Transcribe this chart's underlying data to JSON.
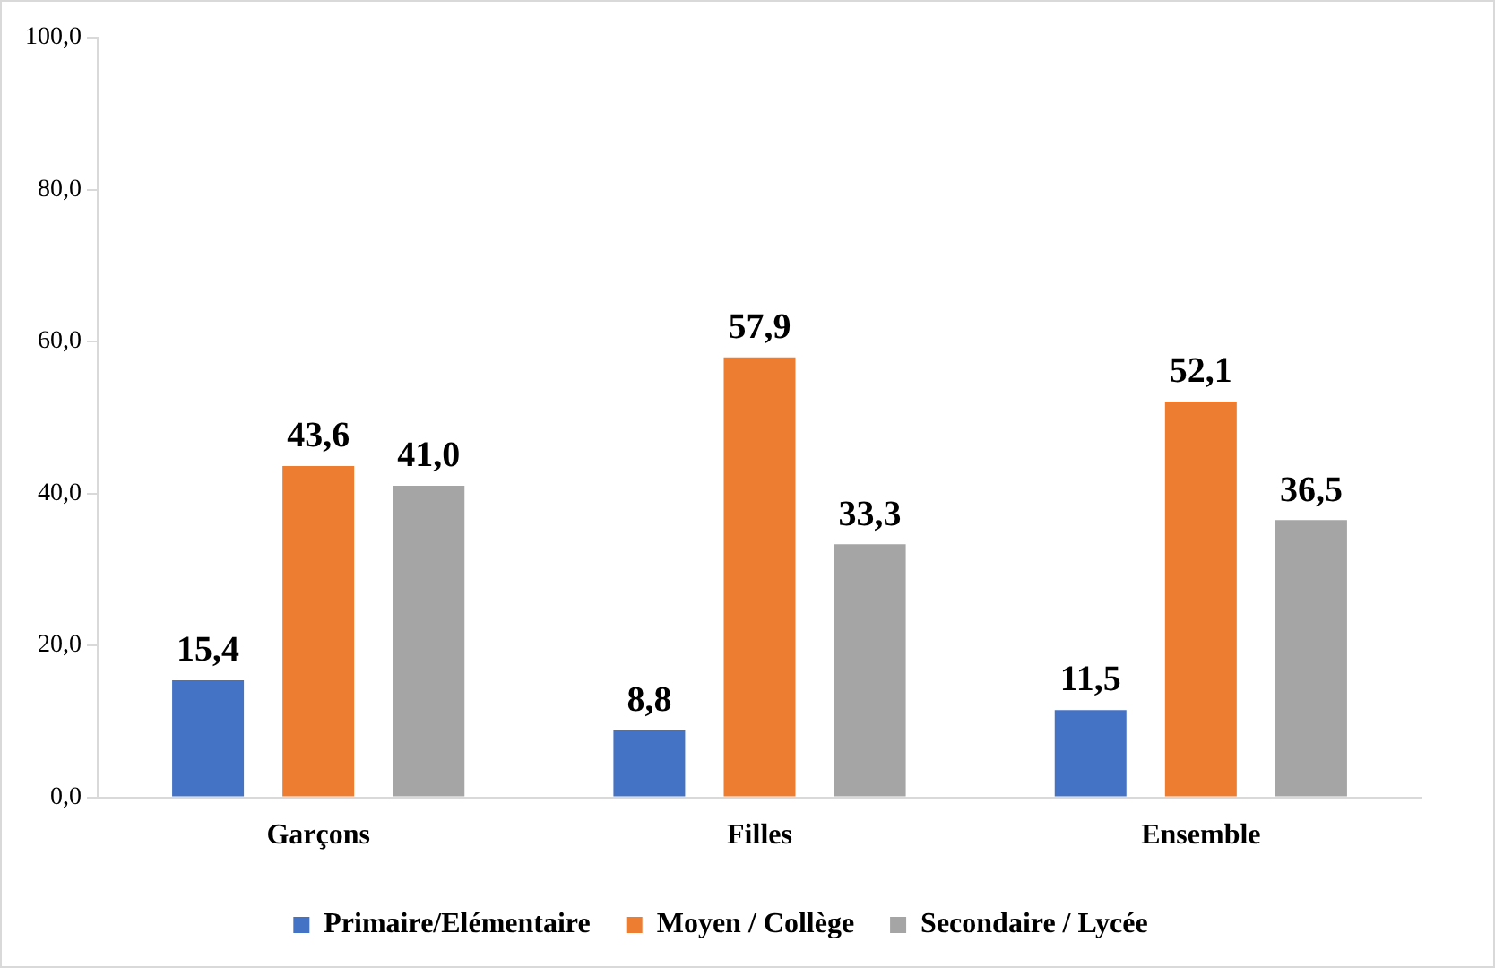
{
  "chart_data": {
    "type": "bar",
    "categories": [
      "Garçons",
      "Filles",
      "Ensemble"
    ],
    "series": [
      {
        "name": "Primaire/Elémentaire",
        "color": "#4472c4",
        "values": [
          15.4,
          8.8,
          11.5
        ],
        "value_labels": [
          "15,4",
          "8,8",
          "11,5"
        ]
      },
      {
        "name": "Moyen / Collège",
        "color": "#ed7d31",
        "values": [
          43.6,
          57.9,
          52.1
        ],
        "value_labels": [
          "43,6",
          "57,9",
          "52,1"
        ]
      },
      {
        "name": "Secondaire / Lycée",
        "color": "#a5a5a5",
        "values": [
          41.0,
          33.3,
          36.5
        ],
        "value_labels": [
          "41,0",
          "33,3",
          "36,5"
        ]
      }
    ],
    "ylim": [
      0,
      100
    ],
    "yticks": [
      {
        "value": 0,
        "label": "0,0"
      },
      {
        "value": 20,
        "label": "20,0"
      },
      {
        "value": 40,
        "label": "40,0"
      },
      {
        "value": 60,
        "label": "60,0"
      },
      {
        "value": 80,
        "label": "80,0"
      },
      {
        "value": 100,
        "label": "100,0"
      }
    ],
    "grid": false,
    "legend": "bottom"
  }
}
